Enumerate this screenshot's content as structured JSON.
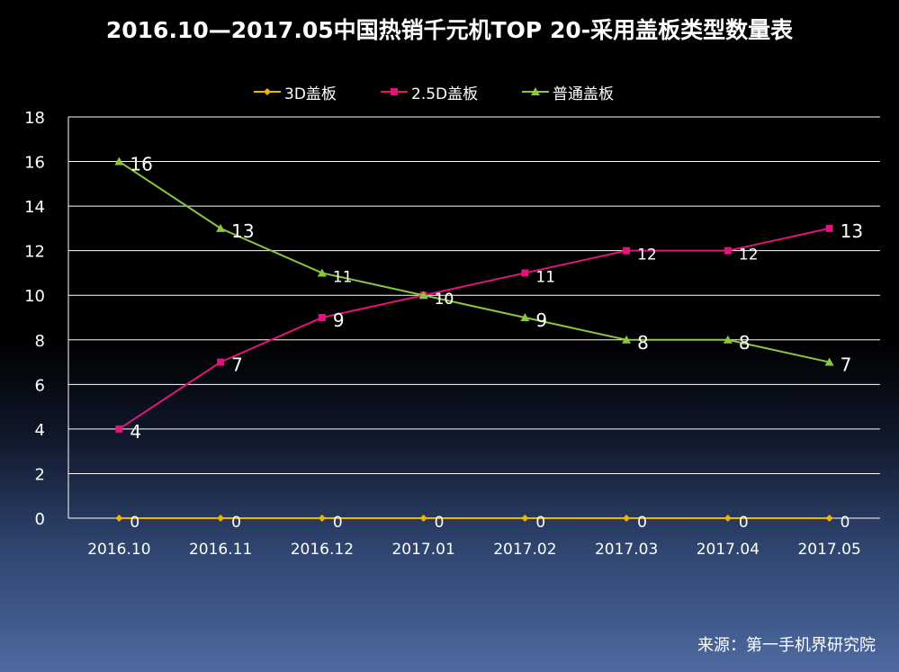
{
  "title": "2016.10—2017.05中国热销千元机TOP 20-采用盖板类型数量表",
  "source": "来源：第一手机界研究院",
  "chart_data": {
    "type": "line",
    "title": "2016.10—2017.05中国热销千元机TOP 20-采用盖板类型数量表",
    "categories": [
      "2016.10",
      "2016.11",
      "2016.12",
      "2017.01",
      "2017.02",
      "2017.03",
      "2017.04",
      "2017.05"
    ],
    "series": [
      {
        "name": "3D盖板",
        "values": [
          0,
          0,
          0,
          0,
          0,
          0,
          0,
          0
        ],
        "color": "#f0b400",
        "marker": "diamond"
      },
      {
        "name": "2.5D盖板",
        "values": [
          4,
          7,
          9,
          10,
          11,
          12,
          12,
          13
        ],
        "color": "#e0157a",
        "marker": "square"
      },
      {
        "name": "普通盖板",
        "values": [
          16,
          13,
          11,
          10,
          9,
          8,
          8,
          7
        ],
        "color": "#8cc63f",
        "marker": "triangle"
      }
    ],
    "ylim": [
      0,
      18
    ],
    "yticks": [
      0,
      2,
      4,
      6,
      8,
      10,
      12,
      14,
      16,
      18
    ],
    "grid": true,
    "legend": "top",
    "data_labels": true
  }
}
